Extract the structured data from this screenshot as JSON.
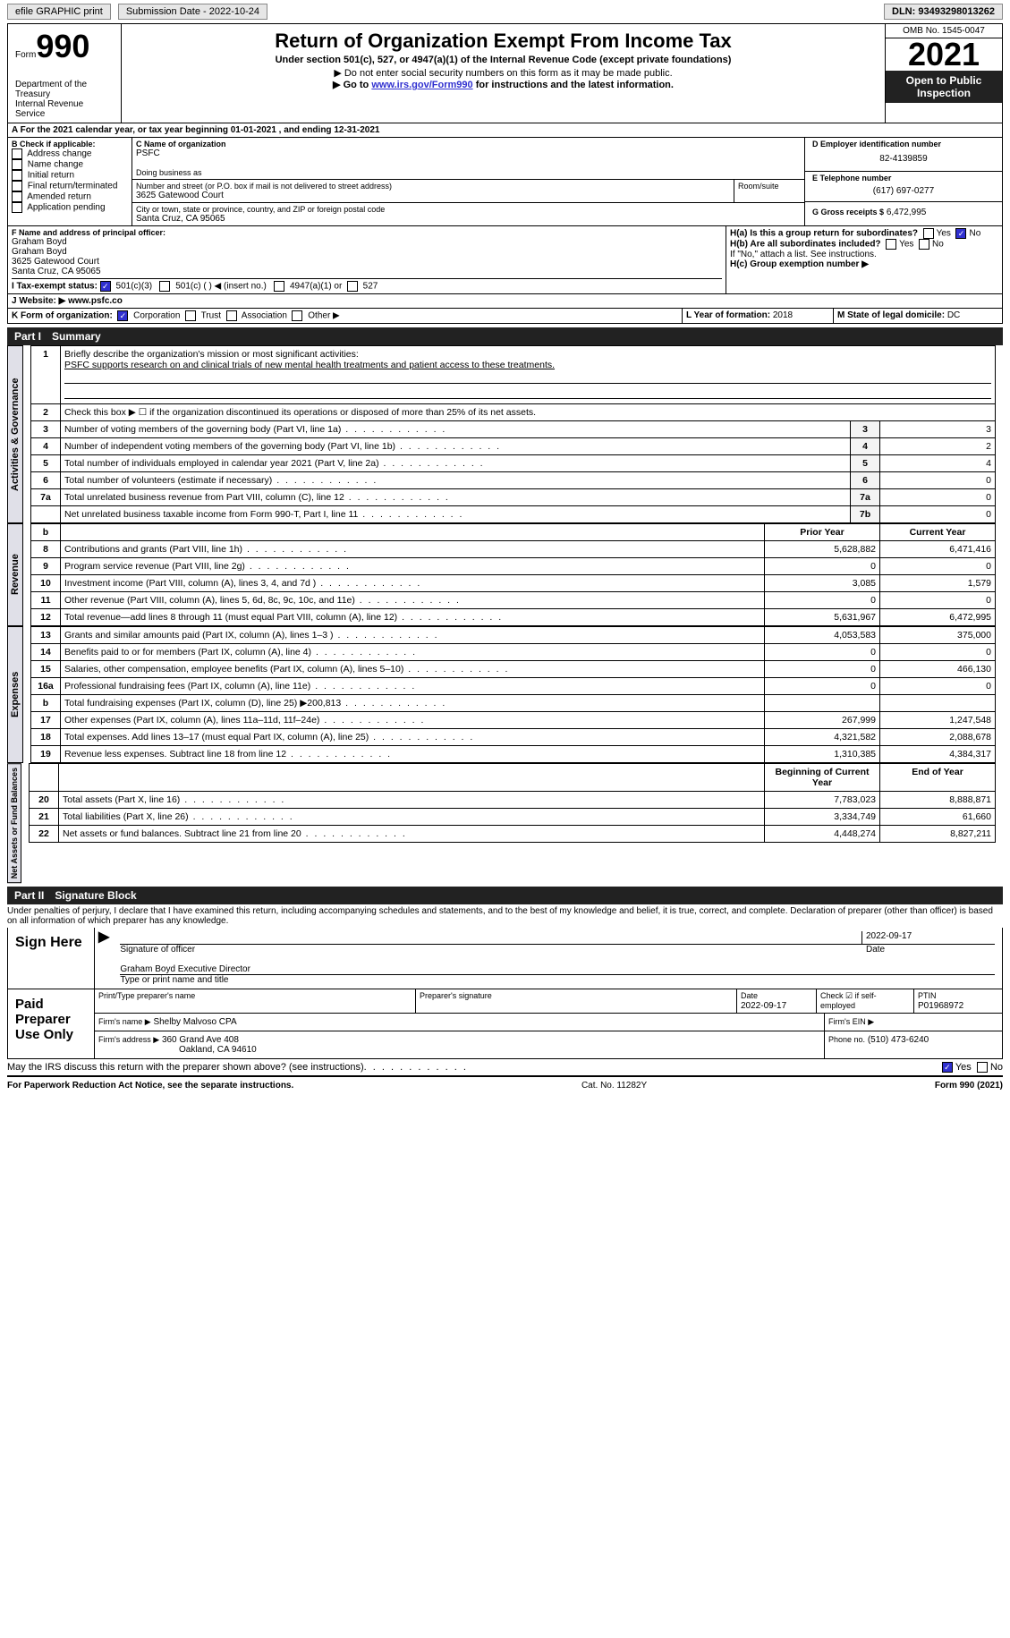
{
  "topbar": {
    "efile": "efile GRAPHIC print",
    "subdate": "Submission Date - 2022-10-24",
    "dln": "DLN: 93493298013262"
  },
  "header": {
    "form_word": "Form",
    "form_num": "990",
    "dept": "Department of the Treasury",
    "irs": "Internal Revenue Service",
    "title": "Return of Organization Exempt From Income Tax",
    "sub1": "Under section 501(c), 527, or 4947(a)(1) of the Internal Revenue Code (except private foundations)",
    "sub2": "▶ Do not enter social security numbers on this form as it may be made public.",
    "sub3_pre": "▶ Go to ",
    "sub3_link": "www.irs.gov/Form990",
    "sub3_post": " for instructions and the latest information.",
    "omb": "OMB No. 1545-0047",
    "year": "2021",
    "open": "Open to Public Inspection"
  },
  "lineA": "A For the 2021 calendar year, or tax year beginning 01-01-2021   , and ending 12-31-2021",
  "boxB": {
    "hdr": "B Check if applicable:",
    "items": [
      "Address change",
      "Name change",
      "Initial return",
      "Final return/terminated",
      "Amended return",
      "Application pending"
    ]
  },
  "boxC": {
    "hdr": "C Name of organization",
    "name": "PSFC",
    "dba_hdr": "Doing business as",
    "addr_hdr": "Number and street (or P.O. box if mail is not delivered to street address)",
    "room_hdr": "Room/suite",
    "addr": "3625 Gatewood Court",
    "city_hdr": "City or town, state or province, country, and ZIP or foreign postal code",
    "city": "Santa Cruz, CA  95065"
  },
  "boxD": {
    "hdr": "D Employer identification number",
    "val": "82-4139859"
  },
  "boxE": {
    "hdr": "E Telephone number",
    "val": "(617) 697-0277"
  },
  "boxG": {
    "hdr": "G Gross receipts $",
    "val": "6,472,995"
  },
  "boxF": {
    "hdr": "F  Name and address of principal officer:",
    "l1": "Graham Boyd",
    "l2": "Graham Boyd",
    "l3": "3625 Gatewood Court",
    "l4": "Santa Cruz, CA  95065"
  },
  "boxH": {
    "a": "H(a)  Is this a group return for subordinates?",
    "b": "H(b)  Are all subordinates included?",
    "note": "If \"No,\" attach a list. See instructions.",
    "c": "H(c)  Group exemption number ▶",
    "yes": "Yes",
    "no": "No"
  },
  "boxI": {
    "hdr": "I    Tax-exempt status:",
    "c1": "501(c)(3)",
    "c2": "501(c) (  ) ◀ (insert no.)",
    "c3": "4947(a)(1) or",
    "c4": "527"
  },
  "boxJ": {
    "hdr": "J   Website: ▶",
    "val": " www.psfc.co"
  },
  "boxK": {
    "hdr": "K Form of organization:",
    "c1": "Corporation",
    "c2": "Trust",
    "c3": "Association",
    "c4": "Other ▶"
  },
  "boxL": {
    "hdr": "L Year of formation:",
    "val": "2018"
  },
  "boxM": {
    "hdr": "M State of legal domicile:",
    "val": "DC"
  },
  "part1": {
    "hdr": "Part I",
    "title": "Summary"
  },
  "tabs": {
    "gov": "Activities & Governance",
    "rev": "Revenue",
    "exp": "Expenses",
    "net": "Net Assets or Fund Balances"
  },
  "q1": {
    "label": "Briefly describe the organization's mission or most significant activities:",
    "text": "PSFC supports research on and clinical trials of new mental health treatments and patient access to these treatments."
  },
  "q2": "Check this box ▶ ☐ if the organization discontinued its operations or disposed of more than 25% of its net assets.",
  "lines_gov": [
    {
      "n": "3",
      "d": "Number of voting members of the governing body (Part VI, line 1a)",
      "b": "3",
      "v": "3"
    },
    {
      "n": "4",
      "d": "Number of independent voting members of the governing body (Part VI, line 1b)",
      "b": "4",
      "v": "2"
    },
    {
      "n": "5",
      "d": "Total number of individuals employed in calendar year 2021 (Part V, line 2a)",
      "b": "5",
      "v": "4"
    },
    {
      "n": "6",
      "d": "Total number of volunteers (estimate if necessary)",
      "b": "6",
      "v": "0"
    },
    {
      "n": "7a",
      "d": "Total unrelated business revenue from Part VIII, column (C), line 12",
      "b": "7a",
      "v": "0"
    },
    {
      "n": "",
      "d": "Net unrelated business taxable income from Form 990-T, Part I, line 11",
      "b": "7b",
      "v": "0"
    }
  ],
  "cols": {
    "b": "b",
    "prior": "Prior Year",
    "curr": "Current Year",
    "boy": "Beginning of Current Year",
    "eoy": "End of Year"
  },
  "lines_rev": [
    {
      "n": "8",
      "d": "Contributions and grants (Part VIII, line 1h)",
      "p": "5,628,882",
      "c": "6,471,416"
    },
    {
      "n": "9",
      "d": "Program service revenue (Part VIII, line 2g)",
      "p": "0",
      "c": "0"
    },
    {
      "n": "10",
      "d": "Investment income (Part VIII, column (A), lines 3, 4, and 7d )",
      "p": "3,085",
      "c": "1,579"
    },
    {
      "n": "11",
      "d": "Other revenue (Part VIII, column (A), lines 5, 6d, 8c, 9c, 10c, and 11e)",
      "p": "0",
      "c": "0"
    },
    {
      "n": "12",
      "d": "Total revenue—add lines 8 through 11 (must equal Part VIII, column (A), line 12)",
      "p": "5,631,967",
      "c": "6,472,995"
    }
  ],
  "lines_exp": [
    {
      "n": "13",
      "d": "Grants and similar amounts paid (Part IX, column (A), lines 1–3 )",
      "p": "4,053,583",
      "c": "375,000"
    },
    {
      "n": "14",
      "d": "Benefits paid to or for members (Part IX, column (A), line 4)",
      "p": "0",
      "c": "0"
    },
    {
      "n": "15",
      "d": "Salaries, other compensation, employee benefits (Part IX, column (A), lines 5–10)",
      "p": "0",
      "c": "466,130"
    },
    {
      "n": "16a",
      "d": "Professional fundraising fees (Part IX, column (A), line 11e)",
      "p": "0",
      "c": "0"
    },
    {
      "n": "b",
      "d": "Total fundraising expenses (Part IX, column (D), line 25) ▶200,813",
      "p": "",
      "c": "",
      "shaded": true
    },
    {
      "n": "17",
      "d": "Other expenses (Part IX, column (A), lines 11a–11d, 11f–24e)",
      "p": "267,999",
      "c": "1,247,548"
    },
    {
      "n": "18",
      "d": "Total expenses. Add lines 13–17 (must equal Part IX, column (A), line 25)",
      "p": "4,321,582",
      "c": "2,088,678"
    },
    {
      "n": "19",
      "d": "Revenue less expenses. Subtract line 18 from line 12",
      "p": "1,310,385",
      "c": "4,384,317"
    }
  ],
  "lines_net": [
    {
      "n": "20",
      "d": "Total assets (Part X, line 16)",
      "p": "7,783,023",
      "c": "8,888,871"
    },
    {
      "n": "21",
      "d": "Total liabilities (Part X, line 26)",
      "p": "3,334,749",
      "c": "61,660"
    },
    {
      "n": "22",
      "d": "Net assets or fund balances. Subtract line 21 from line 20",
      "p": "4,448,274",
      "c": "8,827,211"
    }
  ],
  "part2": {
    "hdr": "Part II",
    "title": "Signature Block"
  },
  "penalties": "Under penalties of perjury, I declare that I have examined this return, including accompanying schedules and statements, and to the best of my knowledge and belief, it is true, correct, and complete. Declaration of preparer (other than officer) is based on all information of which preparer has any knowledge.",
  "sign": {
    "label": "Sign Here",
    "sig_officer": "Signature of officer",
    "date_lbl": "Date",
    "date": "2022-09-17",
    "name": "Graham Boyd  Executive Director",
    "name_lbl": "Type or print name and title"
  },
  "prep": {
    "label": "Paid Preparer Use Only",
    "h1": "Print/Type preparer's name",
    "h2": "Preparer's signature",
    "h3": "Date",
    "h3v": "2022-09-17",
    "h4": "Check ☑ if self-employed",
    "h5": "PTIN",
    "h5v": "P01968972",
    "firm_lbl": "Firm's name    ▶",
    "firm": "Shelby Malvoso CPA",
    "ein_lbl": "Firm's EIN ▶",
    "addr_lbl": "Firm's address ▶",
    "addr1": "360 Grand Ave 408",
    "addr2": "Oakland, CA  94610",
    "phone_lbl": "Phone no.",
    "phone": "(510) 473-6240"
  },
  "discuss": {
    "q": "May the IRS discuss this return with the preparer shown above? (see instructions)",
    "yes": "Yes",
    "no": "No"
  },
  "footer": {
    "l": "For Paperwork Reduction Act Notice, see the separate instructions.",
    "m": "Cat. No. 11282Y",
    "r": "Form 990 (2021)"
  }
}
